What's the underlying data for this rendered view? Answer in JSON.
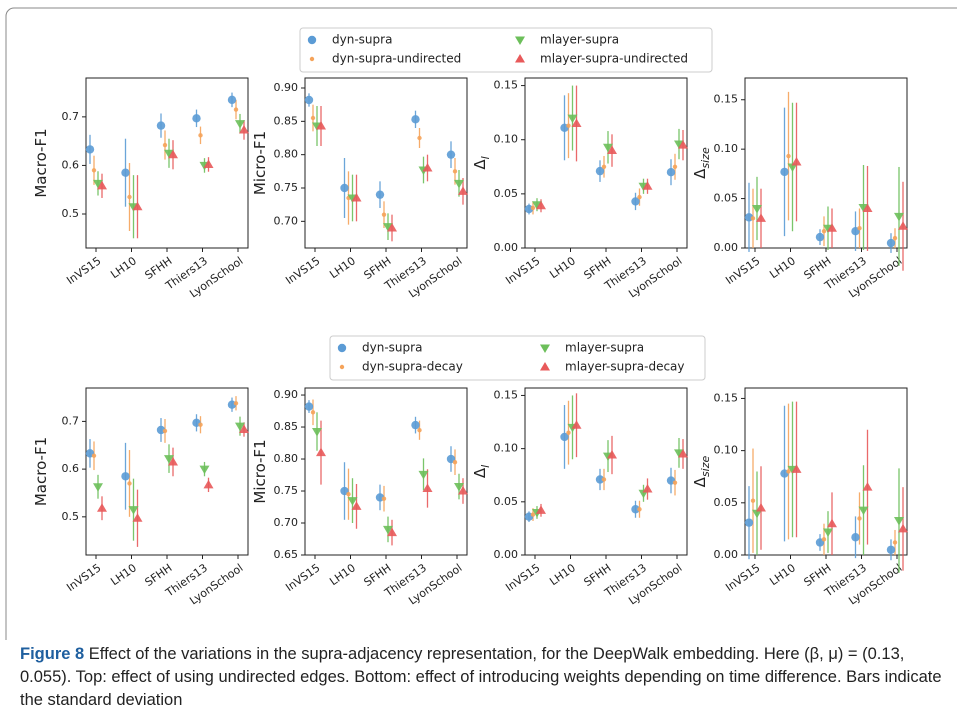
{
  "chart_data": [
    {
      "type": "errorbar",
      "ylabel": "Macro-F1",
      "legend": "above",
      "categories": [
        "InVS15",
        "LH10",
        "SFHH",
        "Thiers13",
        "LyonSchool"
      ],
      "ylim": [
        0.43,
        0.78
      ],
      "yticks": [
        0.5,
        0.6,
        0.7
      ],
      "series": [
        {
          "name": "dyn-supra",
          "color": "#5b9bd5",
          "marker": "o",
          "values": [
            0.633,
            0.585,
            0.682,
            0.697,
            0.735
          ],
          "errors": [
            0.03,
            0.07,
            0.025,
            0.018,
            0.015
          ]
        },
        {
          "name": "dyn-supra-undirected",
          "color": "#f5a35a",
          "marker": ".",
          "values": [
            0.59,
            0.535,
            0.642,
            0.662,
            0.715
          ],
          "errors": [
            0.03,
            0.07,
            0.03,
            0.018,
            0.02
          ]
        },
        {
          "name": "mlayer-supra",
          "color": "#6cbf5a",
          "marker": "v",
          "values": [
            0.563,
            0.515,
            0.625,
            0.6,
            0.686
          ],
          "errors": [
            0.025,
            0.065,
            0.03,
            0.015,
            0.02
          ]
        },
        {
          "name": "mlayer-supra-undirected",
          "color": "#e8595a",
          "marker": "^",
          "values": [
            0.558,
            0.515,
            0.622,
            0.602,
            0.673
          ],
          "errors": [
            0.025,
            0.065,
            0.03,
            0.015,
            0.02
          ]
        }
      ]
    },
    {
      "type": "errorbar",
      "ylabel": "Micro-F1",
      "categories": [
        "InVS15",
        "LH10",
        "SFHH",
        "Thiers13",
        "LyonSchool"
      ],
      "ylim": [
        0.66,
        0.915
      ],
      "yticks": [
        {
          "value": 0.7,
          "label": "0.70"
        },
        0.75,
        {
          "value": 0.8,
          "label": "0.80"
        },
        0.85,
        {
          "value": 0.9,
          "label": "0.90"
        }
      ],
      "series": [
        {
          "name": "dyn-supra",
          "color": "#5b9bd5",
          "marker": "o",
          "values": [
            0.882,
            0.75,
            0.74,
            0.853,
            0.8
          ],
          "errors": [
            0.01,
            0.045,
            0.02,
            0.013,
            0.02
          ]
        },
        {
          "name": "dyn-supra-undirected",
          "color": "#f5a35a",
          "marker": ".",
          "values": [
            0.855,
            0.735,
            0.71,
            0.825,
            0.775
          ],
          "errors": [
            0.02,
            0.04,
            0.02,
            0.015,
            0.02
          ]
        },
        {
          "name": "mlayer-supra",
          "color": "#6cbf5a",
          "marker": "v",
          "values": [
            0.843,
            0.735,
            0.692,
            0.777,
            0.757
          ],
          "errors": [
            0.03,
            0.035,
            0.02,
            0.02,
            0.02
          ]
        },
        {
          "name": "mlayer-supra-undirected",
          "color": "#e8595a",
          "marker": "^",
          "values": [
            0.843,
            0.735,
            0.69,
            0.78,
            0.745
          ],
          "errors": [
            0.03,
            0.035,
            0.02,
            0.02,
            0.02
          ]
        }
      ]
    },
    {
      "type": "errorbar",
      "ylabel": "Δ",
      "ylabel_subscript": "l",
      "categories": [
        "InVS15",
        "LH10",
        "SFHH",
        "Thiers13",
        "LyonSchool"
      ],
      "ylim": [
        0,
        0.157
      ],
      "yticks": [
        {
          "value": 0,
          "label": "0.00"
        },
        0.05,
        {
          "value": 0.1,
          "label": "0.10"
        },
        0.15
      ],
      "series": [
        {
          "name": "dyn-supra",
          "color": "#5b9bd5",
          "marker": "o",
          "values": [
            0.036,
            0.111,
            0.071,
            0.043,
            0.07
          ],
          "errors": [
            0.005,
            0.03,
            0.01,
            0.008,
            0.012
          ]
        },
        {
          "name": "dyn-supra-undirected",
          "color": "#f5a35a",
          "marker": ".",
          "values": [
            0.037,
            0.113,
            0.075,
            0.047,
            0.075
          ],
          "errors": [
            0.006,
            0.03,
            0.01,
            0.008,
            0.012
          ]
        },
        {
          "name": "mlayer-supra",
          "color": "#6cbf5a",
          "marker": "v",
          "values": [
            0.04,
            0.12,
            0.093,
            0.057,
            0.096
          ],
          "errors": [
            0.006,
            0.03,
            0.015,
            0.007,
            0.014
          ]
        },
        {
          "name": "mlayer-supra-undirected",
          "color": "#e8595a",
          "marker": "^",
          "values": [
            0.039,
            0.115,
            0.09,
            0.057,
            0.095
          ],
          "errors": [
            0.006,
            0.035,
            0.015,
            0.007,
            0.014
          ]
        }
      ]
    },
    {
      "type": "errorbar",
      "ylabel": "Δ",
      "ylabel_subscript": "size",
      "categories": [
        "InVS15",
        "LH10",
        "SFHH",
        "Thiers13",
        "LyonSchool"
      ],
      "ylim": [
        0,
        0.172
      ],
      "yticks": [
        {
          "value": 0,
          "label": "0.00"
        },
        0.05,
        {
          "value": 0.1,
          "label": "0.10"
        },
        0.15
      ],
      "series": [
        {
          "name": "dyn-supra",
          "color": "#5b9bd5",
          "marker": "o",
          "values": [
            0.031,
            0.077,
            0.011,
            0.017,
            0.005
          ],
          "errors": [
            0.035,
            0.065,
            0.008,
            0.02,
            0.01
          ]
        },
        {
          "name": "dyn-supra-undirected",
          "color": "#f5a35a",
          "marker": ".",
          "values": [
            0.03,
            0.093,
            0.017,
            0.02,
            0.01
          ],
          "errors": [
            0.03,
            0.065,
            0.015,
            0.02,
            0.01
          ]
        },
        {
          "name": "mlayer-supra",
          "color": "#6cbf5a",
          "marker": "v",
          "values": [
            0.04,
            0.082,
            0.02,
            0.041,
            0.032
          ],
          "errors": [
            0.032,
            0.065,
            0.022,
            0.043,
            0.05
          ]
        },
        {
          "name": "mlayer-supra-undirected",
          "color": "#e8595a",
          "marker": "^",
          "values": [
            0.03,
            0.087,
            0.02,
            0.04,
            0.022
          ],
          "errors": [
            0.03,
            0.06,
            0.02,
            0.043,
            0.045
          ]
        }
      ]
    },
    {
      "type": "errorbar",
      "ylabel": "Macro-F1",
      "legend": "above",
      "categories": [
        "InVS15",
        "LH10",
        "SFHH",
        "Thiers13",
        "LyonSchool"
      ],
      "ylim": [
        0.42,
        0.77
      ],
      "yticks": [
        0.5,
        0.6,
        0.7
      ],
      "series": [
        {
          "name": "dyn-supra",
          "color": "#5b9bd5",
          "marker": "o",
          "values": [
            0.633,
            0.585,
            0.682,
            0.697,
            0.735
          ],
          "errors": [
            0.03,
            0.07,
            0.025,
            0.018,
            0.015
          ]
        },
        {
          "name": "dyn-supra-decay",
          "color": "#f5a35a",
          "marker": ".",
          "values": [
            0.628,
            0.57,
            0.68,
            0.693,
            0.738
          ],
          "errors": [
            0.03,
            0.07,
            0.025,
            0.018,
            0.015
          ]
        },
        {
          "name": "mlayer-supra",
          "color": "#6cbf5a",
          "marker": "v",
          "values": [
            0.563,
            0.515,
            0.622,
            0.6,
            0.69
          ],
          "errors": [
            0.025,
            0.065,
            0.03,
            0.015,
            0.02
          ]
        },
        {
          "name": "mlayer-supra-decay",
          "color": "#e8595a",
          "marker": "^",
          "values": [
            0.518,
            0.497,
            0.615,
            0.567,
            0.683
          ],
          "errors": [
            0.025,
            0.06,
            0.03,
            0.015,
            0.015
          ]
        }
      ]
    },
    {
      "type": "errorbar",
      "ylabel": "Micro-F1",
      "categories": [
        "InVS15",
        "LH10",
        "SFHH",
        "Thiers13",
        "LyonSchool"
      ],
      "ylim": [
        0.65,
        0.911
      ],
      "yticks": [
        0.65,
        {
          "value": 0.7,
          "label": "0.70"
        },
        0.75,
        {
          "value": 0.8,
          "label": "0.80"
        },
        0.85,
        {
          "value": 0.9,
          "label": "0.90"
        }
      ],
      "series": [
        {
          "name": "dyn-supra",
          "color": "#5b9bd5",
          "marker": "o",
          "values": [
            0.882,
            0.75,
            0.74,
            0.853,
            0.8
          ],
          "errors": [
            0.01,
            0.045,
            0.02,
            0.013,
            0.02
          ]
        },
        {
          "name": "dyn-supra-decay",
          "color": "#f5a35a",
          "marker": ".",
          "values": [
            0.873,
            0.745,
            0.738,
            0.845,
            0.795
          ],
          "errors": [
            0.02,
            0.04,
            0.02,
            0.015,
            0.02
          ]
        },
        {
          "name": "mlayer-supra",
          "color": "#6cbf5a",
          "marker": "v",
          "values": [
            0.843,
            0.735,
            0.69,
            0.776,
            0.757
          ],
          "errors": [
            0.03,
            0.035,
            0.02,
            0.025,
            0.02
          ]
        },
        {
          "name": "mlayer-supra-decay",
          "color": "#e8595a",
          "marker": "^",
          "values": [
            0.81,
            0.726,
            0.685,
            0.754,
            0.75
          ],
          "errors": [
            0.05,
            0.035,
            0.02,
            0.03,
            0.02
          ]
        }
      ]
    },
    {
      "type": "errorbar",
      "ylabel": "Δ",
      "ylabel_subscript": "l",
      "categories": [
        "InVS15",
        "LH10",
        "SFHH",
        "Thiers13",
        "LyonSchool"
      ],
      "ylim": [
        0,
        0.157
      ],
      "yticks": [
        {
          "value": 0,
          "label": "0.00"
        },
        0.05,
        {
          "value": 0.1,
          "label": "0.10"
        },
        0.15
      ],
      "series": [
        {
          "name": "dyn-supra",
          "color": "#5b9bd5",
          "marker": "o",
          "values": [
            0.036,
            0.111,
            0.071,
            0.043,
            0.07
          ],
          "errors": [
            0.005,
            0.03,
            0.01,
            0.008,
            0.012
          ]
        },
        {
          "name": "dyn-supra-decay",
          "color": "#f5a35a",
          "marker": ".",
          "values": [
            0.038,
            0.115,
            0.071,
            0.043,
            0.068
          ],
          "errors": [
            0.006,
            0.03,
            0.01,
            0.008,
            0.012
          ]
        },
        {
          "name": "mlayer-supra",
          "color": "#6cbf5a",
          "marker": "v",
          "values": [
            0.04,
            0.12,
            0.093,
            0.058,
            0.096
          ],
          "errors": [
            0.006,
            0.03,
            0.015,
            0.008,
            0.014
          ]
        },
        {
          "name": "mlayer-supra-decay",
          "color": "#e8595a",
          "marker": "^",
          "values": [
            0.042,
            0.122,
            0.094,
            0.062,
            0.095
          ],
          "errors": [
            0.006,
            0.03,
            0.018,
            0.01,
            0.014
          ]
        }
      ]
    },
    {
      "type": "errorbar",
      "ylabel": "Δ",
      "ylabel_subscript": "size",
      "categories": [
        "InVS15",
        "LH10",
        "SFHH",
        "Thiers13",
        "LyonSchool"
      ],
      "ylim": [
        0,
        0.16
      ],
      "yticks": [
        {
          "value": 0,
          "label": "0.00"
        },
        0.05,
        {
          "value": 0.1,
          "label": "0.10"
        },
        0.15
      ],
      "series": [
        {
          "name": "dyn-supra",
          "color": "#5b9bd5",
          "marker": "o",
          "values": [
            0.031,
            0.078,
            0.012,
            0.017,
            0.005
          ],
          "errors": [
            0.035,
            0.065,
            0.008,
            0.02,
            0.01
          ]
        },
        {
          "name": "dyn-supra-decay",
          "color": "#f5a35a",
          "marker": ".",
          "values": [
            0.052,
            0.08,
            0.015,
            0.035,
            0.012
          ],
          "errors": [
            0.05,
            0.065,
            0.015,
            0.025,
            0.012
          ]
        },
        {
          "name": "mlayer-supra",
          "color": "#6cbf5a",
          "marker": "v",
          "values": [
            0.04,
            0.082,
            0.022,
            0.043,
            0.033
          ],
          "errors": [
            0.04,
            0.065,
            0.02,
            0.043,
            0.05
          ]
        },
        {
          "name": "mlayer-supra-decay",
          "color": "#e8595a",
          "marker": "^",
          "values": [
            0.045,
            0.082,
            0.03,
            0.065,
            0.025
          ],
          "errors": [
            0.04,
            0.065,
            0.03,
            0.055,
            0.04
          ]
        }
      ]
    }
  ],
  "caption": {
    "label": "Figure 8",
    "text": "Effect of the variations in the supra-adjacency representation, for the DeepWalk embedding. Here (β, μ) = (0.13, 0.055). Top: effect of using undirected edges. Bottom: effect of introducing weights depending on time difference. Bars indicate the standard deviation"
  }
}
